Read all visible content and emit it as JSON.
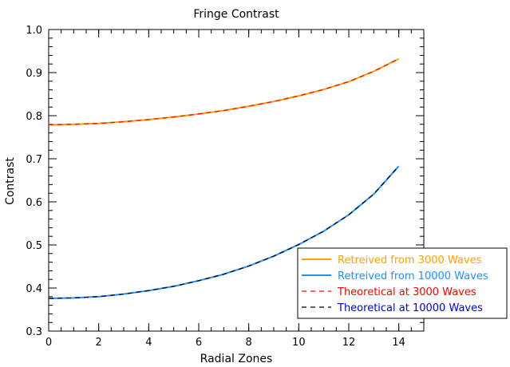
{
  "chart_data": {
    "type": "line",
    "title": "Fringe Contrast",
    "xlabel": "Radial Zones",
    "ylabel": "Contrast",
    "xlim": [
      0,
      15
    ],
    "ylim": [
      0.3,
      1.0
    ],
    "xticks": [
      "0",
      "2",
      "4",
      "6",
      "8",
      "10",
      "12",
      "14"
    ],
    "yticks": [
      "0.3",
      "0.4",
      "0.5",
      "0.6",
      "0.7",
      "0.8",
      "0.9",
      "1.0"
    ],
    "x_minor_step": 0.5,
    "y_minor_step": 0.02,
    "grid": false,
    "legend_position": "bottom-right",
    "x": [
      0,
      1,
      2,
      3,
      4,
      5,
      6,
      7,
      8,
      9,
      10,
      11,
      12,
      13,
      14
    ],
    "series": [
      {
        "name": "Retreived from 3000 Waves",
        "color": "#ffa000",
        "dash": "solid",
        "values": [
          0.779,
          0.78,
          0.782,
          0.786,
          0.791,
          0.797,
          0.804,
          0.812,
          0.822,
          0.833,
          0.846,
          0.861,
          0.879,
          0.903,
          0.932
        ]
      },
      {
        "name": "Retreived from 10000 Waves",
        "color": "#1e90ff",
        "dash": "solid",
        "values": [
          0.376,
          0.377,
          0.38,
          0.386,
          0.394,
          0.404,
          0.417,
          0.432,
          0.451,
          0.474,
          0.501,
          0.532,
          0.57,
          0.618,
          0.683
        ]
      },
      {
        "name": "Theoretical at 3000 Waves",
        "color": "#ff0000",
        "dash": "dashed",
        "values": [
          0.779,
          0.78,
          0.782,
          0.786,
          0.791,
          0.797,
          0.804,
          0.812,
          0.822,
          0.833,
          0.846,
          0.861,
          0.879,
          0.903,
          0.932
        ]
      },
      {
        "name": "Theoretical at 10000 Waves",
        "color": "#000000",
        "dash": "dashed",
        "legend_text_color": "#0000dd",
        "values": [
          0.376,
          0.377,
          0.38,
          0.386,
          0.394,
          0.404,
          0.417,
          0.432,
          0.451,
          0.474,
          0.501,
          0.532,
          0.57,
          0.618,
          0.683
        ]
      }
    ]
  }
}
